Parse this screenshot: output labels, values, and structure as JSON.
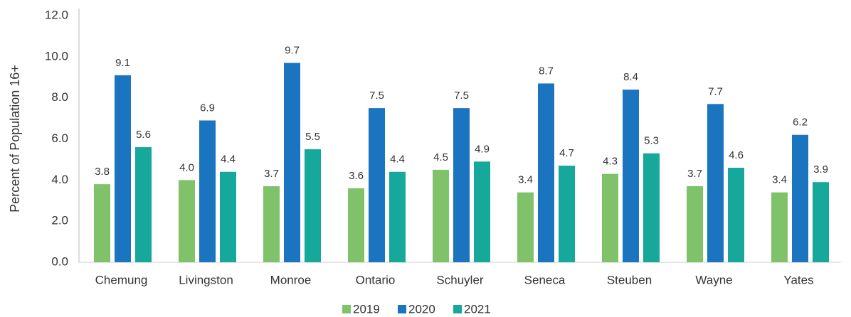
{
  "chart_data": {
    "type": "bar",
    "y_label": "Percent of Population 16+",
    "categories": [
      "Chemung",
      "Livingston",
      "Monroe",
      "Ontario",
      "Schuyler",
      "Seneca",
      "Steuben",
      "Wayne",
      "Yates"
    ],
    "series": [
      {
        "name": "2019",
        "color": "#80c26a",
        "values": [
          3.8,
          4.0,
          3.7,
          3.6,
          4.5,
          3.4,
          4.3,
          3.7,
          3.4
        ],
        "value_labels": [
          "3.8",
          "4.0",
          "3.7",
          "3.6",
          "4.5",
          "3.4",
          "4.3",
          "3.7",
          "3.4"
        ]
      },
      {
        "name": "2020",
        "color": "#1b74bf",
        "values": [
          9.1,
          6.9,
          9.7,
          7.5,
          7.5,
          8.7,
          8.4,
          7.7,
          6.2
        ],
        "value_labels": [
          "9.1",
          "6.9",
          "9.7",
          "7.5",
          "7.5",
          "8.7",
          "8.4",
          "7.7",
          "6.2"
        ]
      },
      {
        "name": "2021",
        "color": "#17a89c",
        "values": [
          5.6,
          4.4,
          5.5,
          4.4,
          4.9,
          4.7,
          5.3,
          4.6,
          3.9
        ],
        "value_labels": [
          "5.6",
          "4.4",
          "5.5",
          "4.4",
          "4.9",
          "4.7",
          "5.3",
          "4.6",
          "3.9"
        ]
      }
    ],
    "ylim": [
      0,
      12
    ],
    "yticks": [
      {
        "value": 0,
        "label": "0.0"
      },
      {
        "value": 2,
        "label": "2.0"
      },
      {
        "value": 4,
        "label": "4.0"
      },
      {
        "value": 6,
        "label": "6.0"
      },
      {
        "value": 8,
        "label": "8.0"
      },
      {
        "value": 10,
        "label": "10.0"
      },
      {
        "value": 12,
        "label": "12.0"
      }
    ],
    "grid": false,
    "legend": "bottom"
  }
}
